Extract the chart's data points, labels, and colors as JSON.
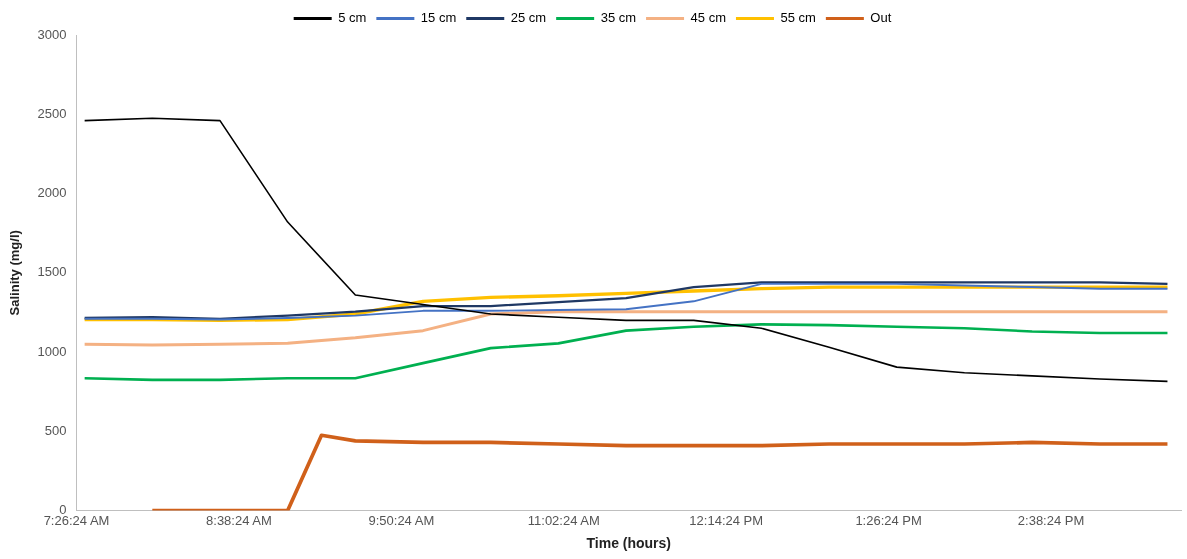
{
  "chart_data": {
    "type": "line",
    "xlabel": "Time (hours)",
    "ylabel": "Salinity (mg/l)",
    "x": [
      7.5,
      8.0,
      8.5,
      9.0,
      9.5,
      10.0,
      10.5,
      11.0,
      11.5,
      12.0,
      12.5,
      13.0,
      13.5,
      14.0,
      14.5,
      15.0,
      15.5
    ],
    "xlim": [
      7.44,
      15.6
    ],
    "xticks": [
      {
        "value": 7.44,
        "label": "7:26:24 AM"
      },
      {
        "value": 8.64,
        "label": "8:38:24 AM"
      },
      {
        "value": 9.84,
        "label": "9:50:24 AM"
      },
      {
        "value": 11.04,
        "label": "11:02:24 AM"
      },
      {
        "value": 12.24,
        "label": "12:14:24 PM"
      },
      {
        "value": 13.44,
        "label": "1:26:24 PM"
      },
      {
        "value": 14.64,
        "label": "2:38:24 PM"
      }
    ],
    "ylim": [
      0,
      3000
    ],
    "yticks": [
      0,
      500,
      1000,
      1500,
      2000,
      2500,
      3000
    ],
    "grid": false,
    "legend": "top",
    "marker": "none",
    "line_style": "solid",
    "series": [
      {
        "name": "5 cm",
        "color": "#000000",
        "values": [
          2460,
          2475,
          2460,
          1820,
          1360,
          1300,
          1240,
          1220,
          1200,
          1200,
          1150,
          1030,
          905,
          870,
          850,
          830,
          815
        ]
      },
      {
        "name": "15 cm",
        "color": "#4472c4",
        "values": [
          1210,
          1210,
          1205,
          1215,
          1230,
          1260,
          1260,
          1265,
          1270,
          1320,
          1430,
          1430,
          1430,
          1420,
          1410,
          1400,
          1400
        ]
      },
      {
        "name": "25 cm",
        "color": "#1f3864",
        "values": [
          1215,
          1220,
          1210,
          1230,
          1255,
          1290,
          1290,
          1315,
          1340,
          1410,
          1440,
          1440,
          1440,
          1440,
          1440,
          1440,
          1430
        ]
      },
      {
        "name": "35 cm",
        "color": "#00b050",
        "values": [
          835,
          825,
          825,
          835,
          835,
          930,
          1025,
          1055,
          1135,
          1160,
          1175,
          1170,
          1160,
          1150,
          1130,
          1120,
          1120
        ]
      },
      {
        "name": "45 cm",
        "color": "#f4b183",
        "values": [
          1050,
          1045,
          1050,
          1055,
          1090,
          1135,
          1240,
          1255,
          1255,
          1255,
          1255,
          1255,
          1255,
          1255,
          1255,
          1255,
          1255
        ]
      },
      {
        "name": "55 cm",
        "color": "#ffc000",
        "values": [
          1205,
          1205,
          1200,
          1205,
          1240,
          1320,
          1345,
          1355,
          1370,
          1385,
          1400,
          1410,
          1410,
          1410,
          1410,
          1410,
          1410
        ]
      },
      {
        "name": "Out",
        "color": "#d0601a",
        "x": [
          8.0,
          8.5,
          9.0,
          9.25,
          9.5,
          10.0,
          10.5,
          11.0,
          11.5,
          12.0,
          12.5,
          13.0,
          13.5,
          14.0,
          14.5,
          15.0,
          15.5
        ],
        "values": [
          0,
          0,
          0,
          475,
          440,
          430,
          430,
          420,
          410,
          410,
          410,
          420,
          420,
          420,
          430,
          420,
          420
        ]
      }
    ]
  }
}
